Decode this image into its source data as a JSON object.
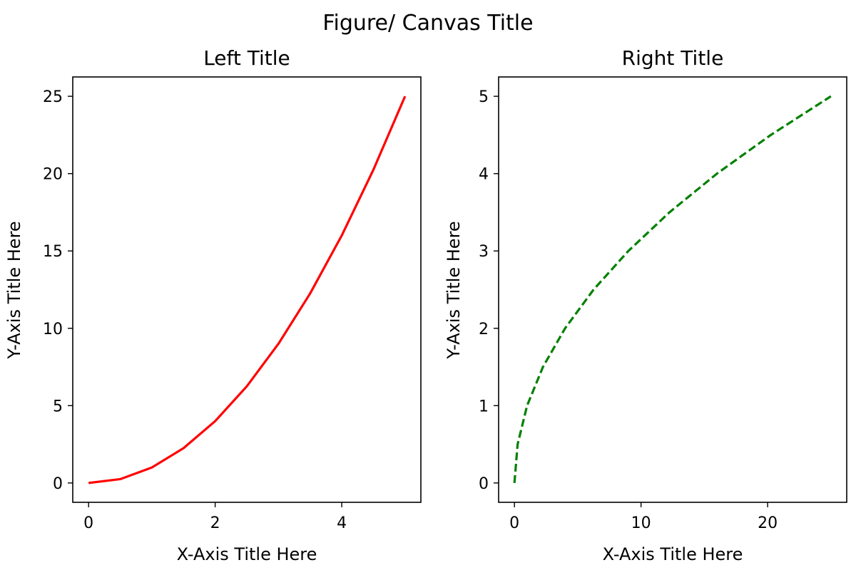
{
  "figure": {
    "title": "Figure/ Canvas Title"
  },
  "chart_data": [
    {
      "type": "line",
      "title": "Left Title",
      "xlabel": "X-Axis Title Here",
      "ylabel": "Y-Axis Title Here",
      "xlim": [
        -0.25,
        5.25
      ],
      "ylim": [
        -1.25,
        26.25
      ],
      "xticks": [
        0,
        2,
        4
      ],
      "yticks": [
        0,
        5,
        10,
        15,
        20,
        25
      ],
      "grid": false,
      "series": [
        {
          "color": "#ff0000",
          "linestyle": "solid",
          "x": [
            0,
            0.5,
            1,
            1.5,
            2,
            2.5,
            3,
            3.5,
            4,
            4.5,
            5
          ],
          "y": [
            0,
            0.25,
            1,
            2.25,
            4,
            6.25,
            9,
            12.25,
            16,
            20.25,
            25
          ]
        }
      ]
    },
    {
      "type": "line",
      "title": "Right Title",
      "xlabel": "X-Axis Title Here",
      "ylabel": "Y-Axis Title Here",
      "xlim": [
        -1.25,
        26.25
      ],
      "ylim": [
        -0.25,
        5.25
      ],
      "xticks": [
        0,
        10,
        20
      ],
      "yticks": [
        0,
        1,
        2,
        3,
        4,
        5
      ],
      "grid": false,
      "series": [
        {
          "color": "#008000",
          "linestyle": "dashed",
          "x": [
            0,
            0.25,
            1,
            2.25,
            4,
            6.25,
            9,
            12.25,
            16,
            20.25,
            25
          ],
          "y": [
            0,
            0.5,
            1,
            1.5,
            2,
            2.5,
            3,
            3.5,
            4,
            4.5,
            5
          ]
        }
      ]
    }
  ]
}
